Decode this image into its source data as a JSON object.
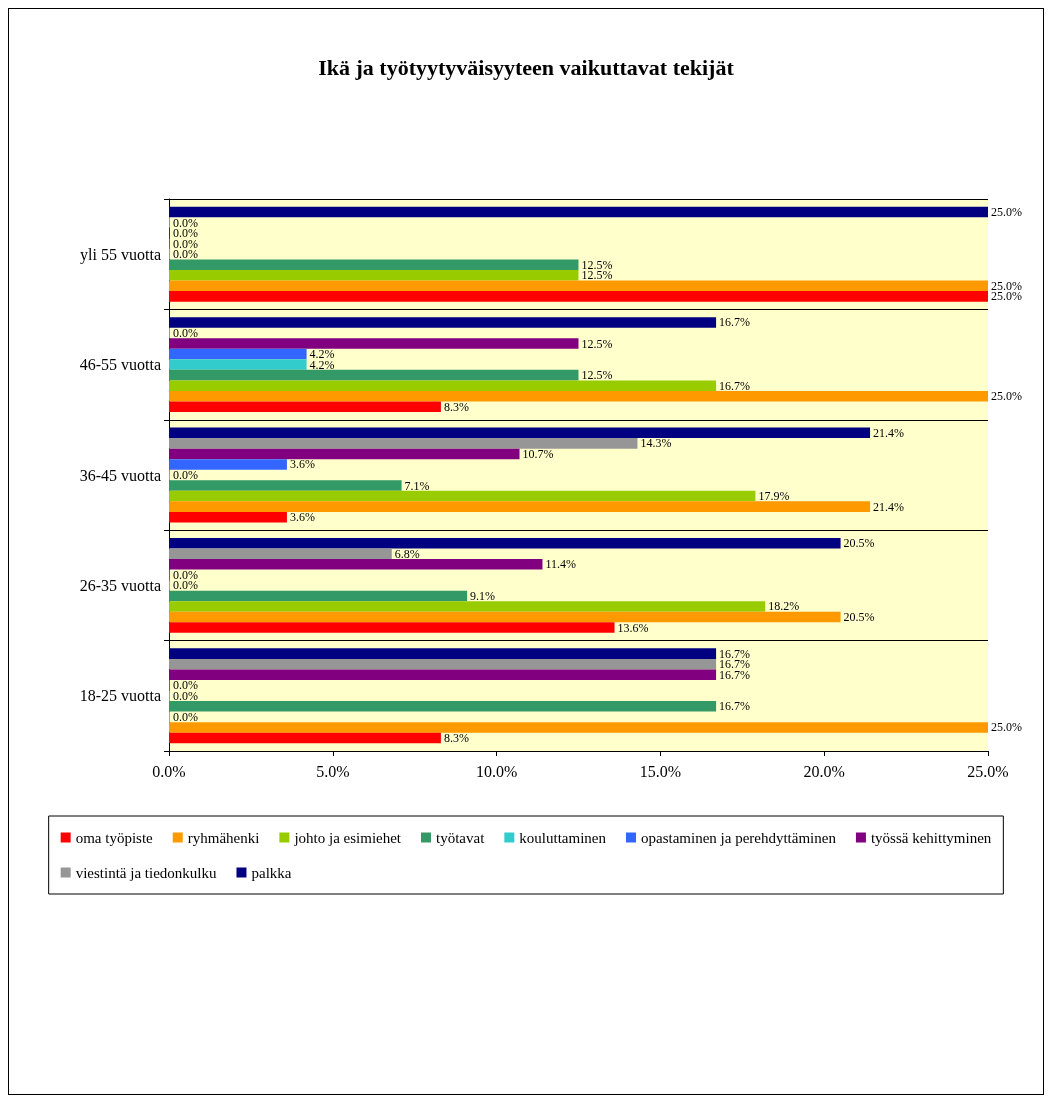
{
  "chart_data": {
    "type": "bar",
    "orientation": "horizontal",
    "title": "Ikä ja työtyytyväisyyteen vaikuttavat tekijät",
    "categories": [
      "yli 55 vuotta",
      "46-55 vuotta",
      "36-45 vuotta",
      "26-35 vuotta",
      "18-25 vuotta"
    ],
    "series": [
      {
        "name": "oma työpiste",
        "color": "#ff0000",
        "values": [
          25.0,
          8.3,
          3.6,
          13.6,
          8.3
        ],
        "value_labels": [
          "25.0%",
          "8.3%",
          "3.6%",
          "13.6%",
          "8.3%"
        ]
      },
      {
        "name": "ryhmähenki",
        "color": "#ff9900",
        "values": [
          25.0,
          25.0,
          21.4,
          20.5,
          25.0
        ],
        "value_labels": [
          "25.0%",
          "25.0%",
          "21.4%",
          "20.5%",
          "25.0%"
        ]
      },
      {
        "name": "johto ja esimiehet",
        "color": "#99cc00",
        "values": [
          12.5,
          16.7,
          17.9,
          18.2,
          0.0
        ],
        "value_labels": [
          "12.5%",
          "16.7%",
          "17.9%",
          "18.2%",
          "0.0%"
        ]
      },
      {
        "name": "työtavat",
        "color": "#339966",
        "values": [
          12.5,
          12.5,
          7.1,
          9.1,
          16.7
        ],
        "value_labels": [
          "12.5%",
          "12.5%",
          "7.1%",
          "9.1%",
          "16.7%"
        ]
      },
      {
        "name": "kouluttaminen",
        "color": "#33cccc",
        "values": [
          0.0,
          4.2,
          0.0,
          0.0,
          0.0
        ],
        "value_labels": [
          "0.0%",
          "4.2%",
          "0.0%",
          "0.0%",
          "0.0%"
        ]
      },
      {
        "name": "opastaminen ja perehdyttäminen",
        "color": "#3366ff",
        "values": [
          0.0,
          4.2,
          3.6,
          0.0,
          0.0
        ],
        "value_labels": [
          "0.0%",
          "4.2%",
          "3.6%",
          "0.0%",
          "0.0%"
        ]
      },
      {
        "name": "työssä kehittyminen",
        "color": "#800080",
        "values": [
          0.0,
          12.5,
          10.7,
          11.4,
          16.7
        ],
        "value_labels": [
          "0.0%",
          "12.5%",
          "10.7%",
          "11.4%",
          "16.7%"
        ]
      },
      {
        "name": "viestintä ja tiedonkulku",
        "color": "#969696",
        "values": [
          0.0,
          0.0,
          14.3,
          6.8,
          16.7
        ],
        "value_labels": [
          "0.0%",
          "0.0%",
          "14.3%",
          "6.8%",
          "16.7%"
        ]
      },
      {
        "name": "palkka",
        "color": "#000080",
        "values": [
          25.0,
          16.7,
          21.4,
          20.5,
          16.7
        ],
        "value_labels": [
          "25.0%",
          "16.7%",
          "21.4%",
          "20.5%",
          "16.7%"
        ]
      }
    ],
    "xlim": [
      0,
      25
    ],
    "xticks": [
      {
        "value": 0,
        "label": "0.0%"
      },
      {
        "value": 5,
        "label": "5.0%"
      },
      {
        "value": 10,
        "label": "10.0%"
      },
      {
        "value": 15,
        "label": "15.0%"
      },
      {
        "value": 20,
        "label": "20.0%"
      },
      {
        "value": 25,
        "label": "25.0%"
      }
    ],
    "legend": "bottom"
  }
}
